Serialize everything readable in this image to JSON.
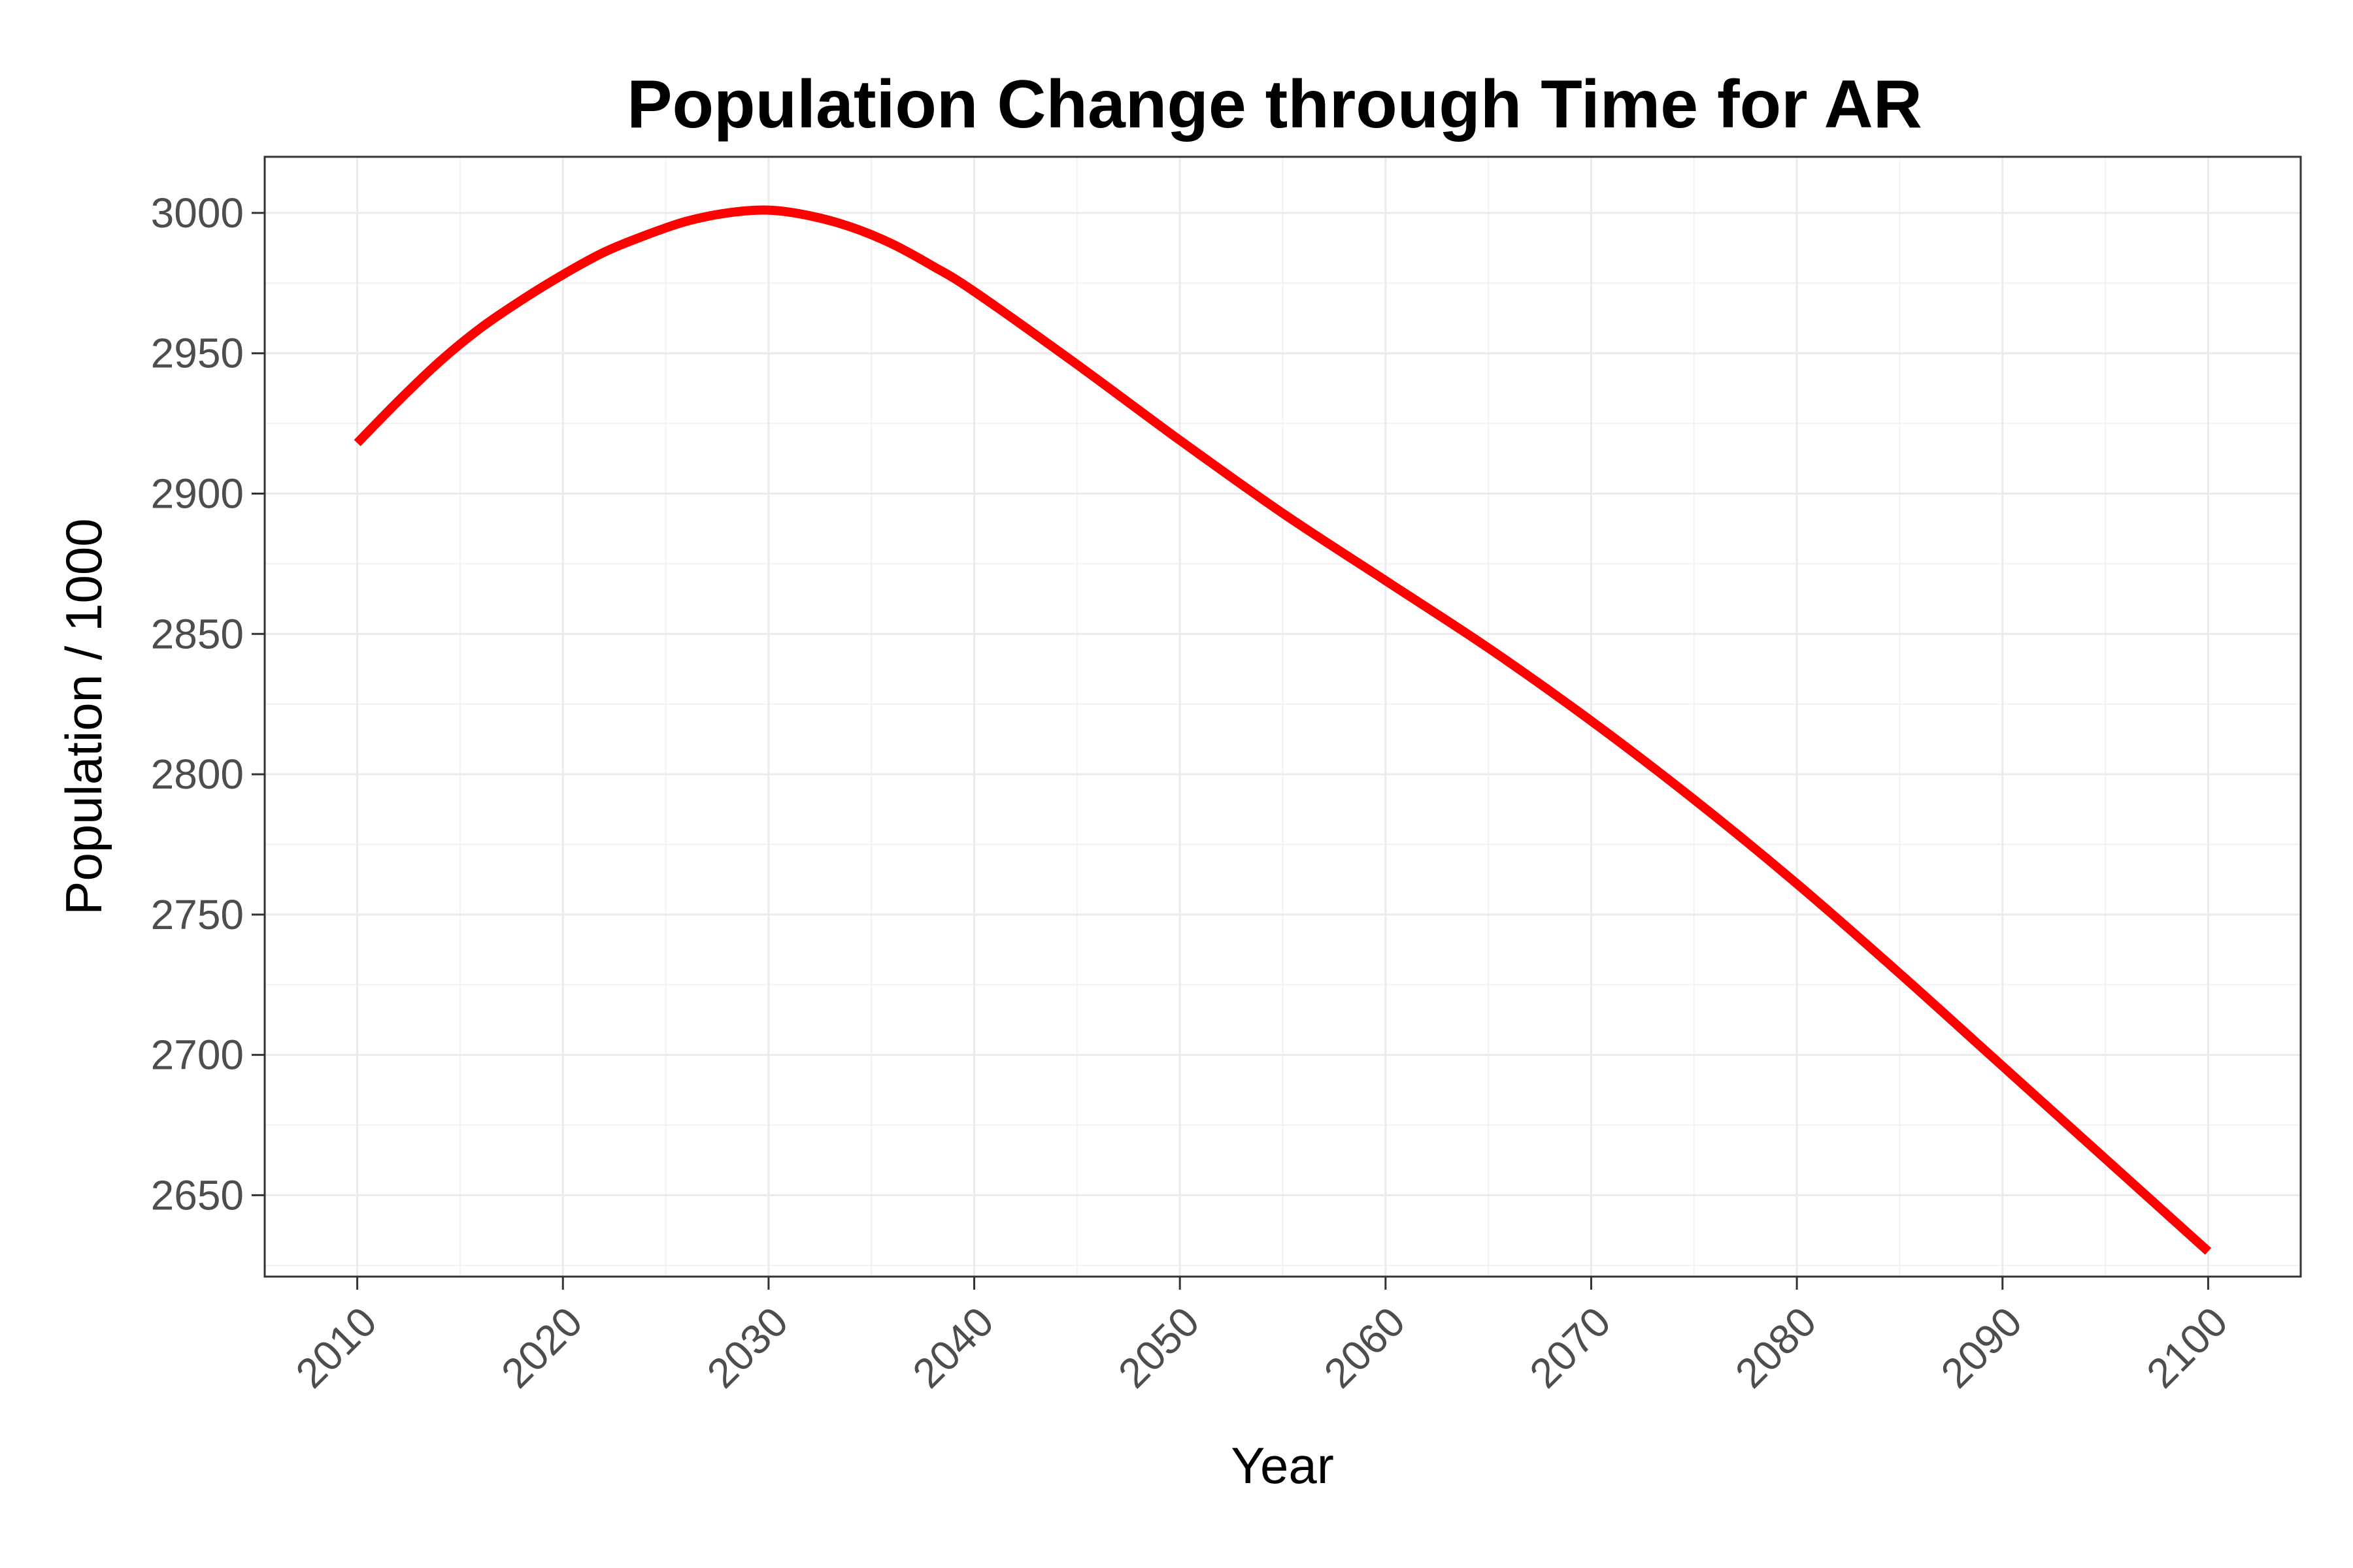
{
  "chart_data": {
    "type": "line",
    "title": "Population Change through Time for AR",
    "xlabel": "Year",
    "ylabel": "Population / 1000",
    "xlim": [
      2005.5,
      2104.5
    ],
    "ylim": [
      2621,
      3020
    ],
    "x_ticks": [
      2010,
      2020,
      2030,
      2040,
      2050,
      2060,
      2070,
      2080,
      2090,
      2100
    ],
    "y_ticks": [
      2650,
      2700,
      2750,
      2800,
      2850,
      2900,
      2950,
      3000
    ],
    "grid": true,
    "legend": "none",
    "line_color": "#ff0000",
    "series": [
      {
        "x": [
          2010,
          2012,
          2014,
          2016,
          2018,
          2020,
          2022,
          2024,
          2026,
          2028,
          2030,
          2032,
          2034,
          2036,
          2038,
          2040,
          2045,
          2050,
          2055,
          2060,
          2065,
          2070,
          2075,
          2080,
          2085,
          2090,
          2095,
          2100
        ],
        "values": [
          2918,
          2933,
          2947,
          2959,
          2969,
          2978,
          2986,
          2992,
          2997,
          3000,
          3001,
          2999,
          2995,
          2989,
          2981,
          2972,
          2946,
          2919,
          2893,
          2869,
          2845,
          2819,
          2791,
          2761,
          2729,
          2696,
          2663,
          2630
        ]
      }
    ]
  }
}
